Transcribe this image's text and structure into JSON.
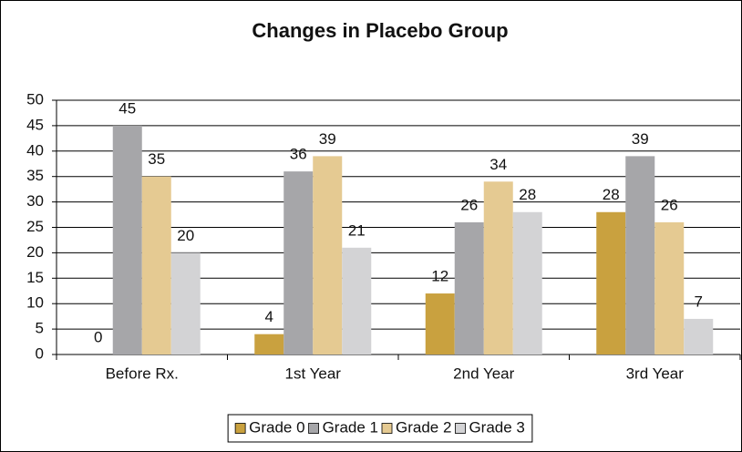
{
  "chart_data": {
    "type": "bar",
    "title": "Changes in Placebo Group",
    "categories": [
      "Before Rx.",
      "1st Year",
      "2nd Year",
      "3rd Year"
    ],
    "series": [
      {
        "name": "Grade 0",
        "color": "#c9a13f",
        "values": [
          0,
          4,
          12,
          28
        ]
      },
      {
        "name": "Grade 1",
        "color": "#a6a6a9",
        "values": [
          45,
          36,
          26,
          39
        ]
      },
      {
        "name": "Grade 2",
        "color": "#e5ca92",
        "values": [
          35,
          39,
          34,
          26
        ]
      },
      {
        "name": "Grade 3",
        "color": "#d3d3d5",
        "values": [
          20,
          21,
          28,
          7
        ]
      }
    ],
    "ylim": [
      0,
      50
    ],
    "yticks": [
      0,
      5,
      10,
      15,
      20,
      25,
      30,
      35,
      40,
      45,
      50
    ],
    "grid": true,
    "legend": "bottom"
  }
}
